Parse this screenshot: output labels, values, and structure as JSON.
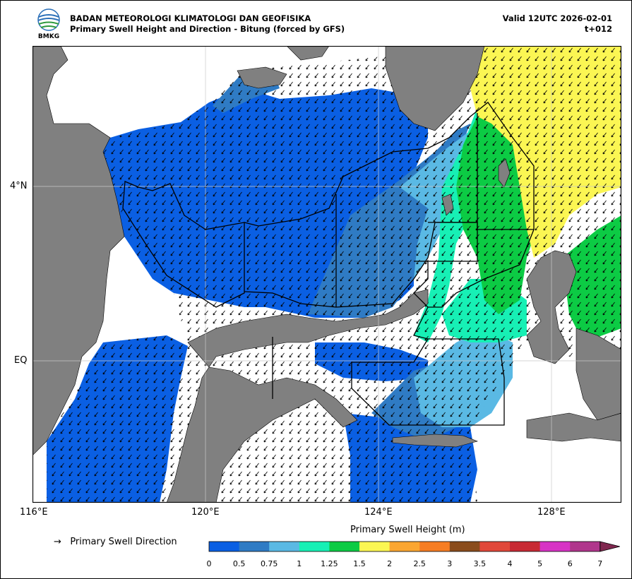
{
  "header": {
    "agency": "BADAN METEOROLOGI KLIMATOLOGI DAN GEOFISIKA",
    "product": "Primary Swell Height and Direction - Bitung (forced by GFS)",
    "valid": "Valid 12UTC 2026-02-01",
    "forecast_hour": "t+012",
    "logo_text": "BMKG"
  },
  "axes": {
    "x_ticks": [
      "116°E",
      "120°E",
      "124°E",
      "128°E"
    ],
    "y_ticks": [
      "4°N",
      "EQ"
    ]
  },
  "legend": {
    "arrow_glyph": "→",
    "arrow_label": "Primary Swell Direction"
  },
  "colorbar": {
    "title": "Primary Swell Height (m)",
    "ticks": [
      "0",
      "0.5",
      "0.75",
      "1",
      "1.25",
      "1.5",
      "2",
      "2.5",
      "3",
      "3.5",
      "4",
      "5",
      "6",
      "7"
    ],
    "colors": [
      "#0a5fe3",
      "#2f7bc4",
      "#5ab9e4",
      "#17f0b5",
      "#0ccb44",
      "#fbf653",
      "#fba631",
      "#f67d23",
      "#8a4c1c",
      "#e1483a",
      "#c82a34",
      "#d733c5",
      "#b0368c",
      "#80274f"
    ]
  },
  "map": {
    "colors": {
      "land": "#808080",
      "no_data": "#ffffff",
      "grid": "#c8c8c8",
      "boundary": "#000000"
    },
    "regions": [
      {
        "height_class": "0 – 0.5 m",
        "color": "#0a5fe3"
      },
      {
        "height_class": "0.5 – 0.75 m",
        "color": "#2f7bc4"
      },
      {
        "height_class": "0.75 – 1 m",
        "color": "#5ab9e4"
      },
      {
        "height_class": "1 – 1.25 m",
        "color": "#17f0b5"
      },
      {
        "height_class": "1.25 – 1.5 m",
        "color": "#0ccb44"
      },
      {
        "height_class": "1.5 – 2 m",
        "color": "#fbf653"
      }
    ]
  }
}
